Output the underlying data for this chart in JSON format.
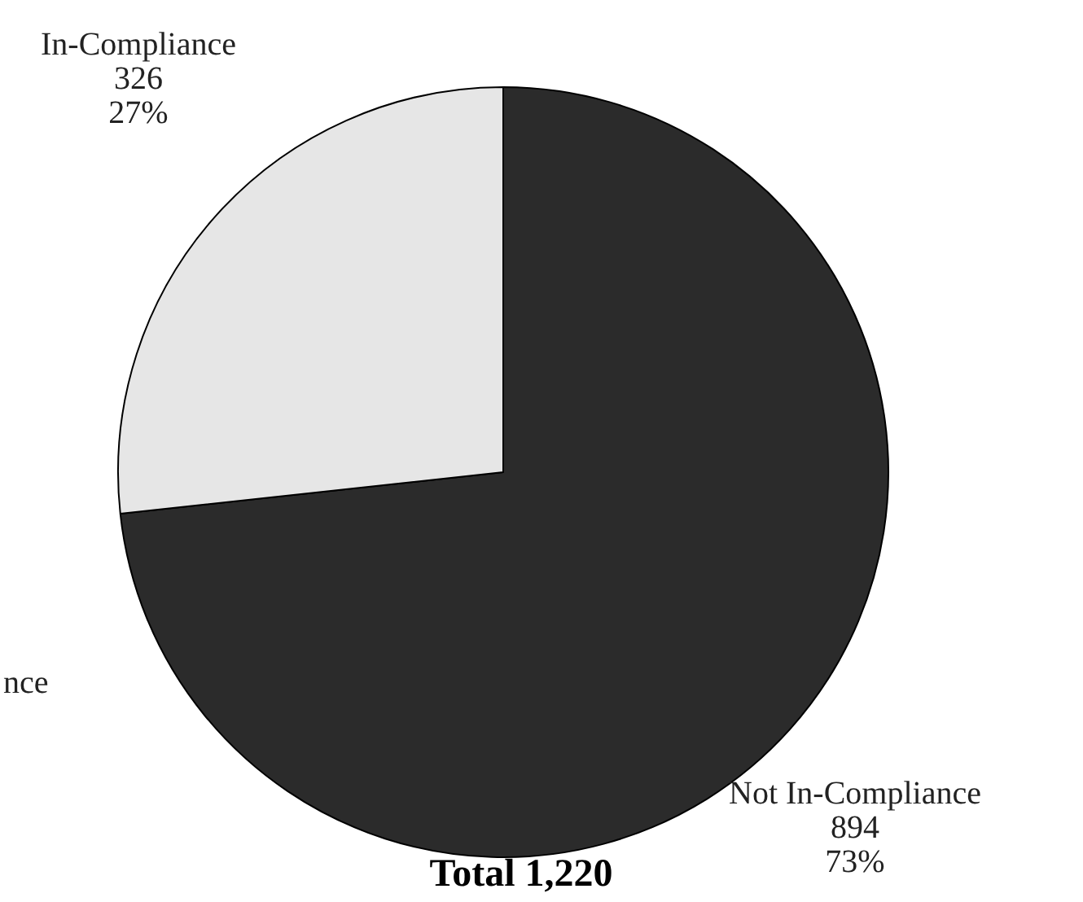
{
  "chart_data": {
    "type": "pie",
    "title": "Total 1,220",
    "categories": [
      "Not In-Compliance",
      "In-Compliance"
    ],
    "values": [
      894,
      326
    ],
    "colors": [
      "#2b2b2b",
      "#e6e6e6"
    ],
    "value_labels": [
      "894\n73%",
      "326\n27%"
    ],
    "annotations": [
      "nce"
    ],
    "legend": false
  }
}
